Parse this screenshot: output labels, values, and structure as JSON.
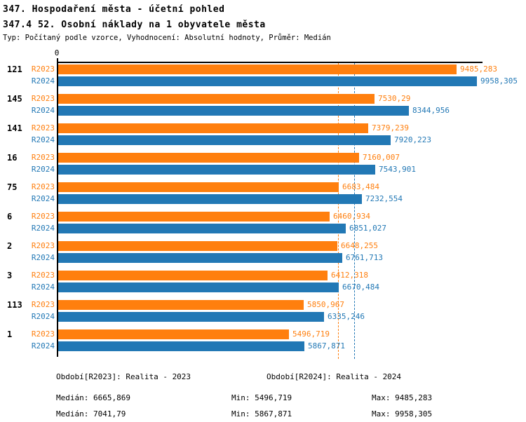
{
  "title": "347. Hospodaření města - účetní pohled",
  "subtitle": "347.4 52. Osobní náklady na 1 obyvatele města",
  "meta": "Typ: Počítaný podle vzorce, Vyhodnocení: Absolutní hodnoty, Průměr: Medián",
  "colors": {
    "orange": "#FF7F0E",
    "blue": "#2278B5",
    "axis": "#000000"
  },
  "chart_data": {
    "type": "bar",
    "orientation": "horizontal",
    "title": "347.4 52. Osobní náklady na 1 obyvatele města",
    "axis_zero_label": "0",
    "xlim": [
      0,
      10100
    ],
    "grid": false,
    "legend_position": "bottom",
    "categories": [
      "121",
      "145",
      "141",
      "16",
      "75",
      "6",
      "2",
      "3",
      "113",
      "1"
    ],
    "series": [
      {
        "name": "R2023",
        "legend_label": "Období[R2023]: Realita - 2023",
        "color": "#FF7F0E",
        "values": [
          9485.283,
          7530.29,
          7379.239,
          7160.007,
          6683.484,
          6460.934,
          6648.255,
          6412.318,
          5850.967,
          5496.719
        ],
        "value_labels": [
          "9485,283",
          "7530,29",
          "7379,239",
          "7160,007",
          "6683,484",
          "6460,934",
          "6648,255",
          "6412,318",
          "5850,967",
          "5496,719"
        ],
        "median": 6665.869,
        "stats": {
          "median_label": "Medián: 6665,869",
          "min_label": "Min: 5496,719",
          "max_label": "Max: 9485,283"
        }
      },
      {
        "name": "R2024",
        "legend_label": "Období[R2024]: Realita - 2024",
        "color": "#2278B5",
        "values": [
          9958.305,
          8344.956,
          7920.223,
          7543.901,
          7232.554,
          6851.027,
          6761.713,
          6670.484,
          6335.246,
          5867.871
        ],
        "value_labels": [
          "9958,305",
          "8344,956",
          "7920,223",
          "7543,901",
          "7232,554",
          "6851,027",
          "6761,713",
          "6670,484",
          "6335,246",
          "5867,871"
        ],
        "median": 7041.79,
        "stats": {
          "median_label": "Medián: 7041,79",
          "min_label": "Min: 5867,871",
          "max_label": "Max: 9958,305"
        }
      }
    ]
  }
}
